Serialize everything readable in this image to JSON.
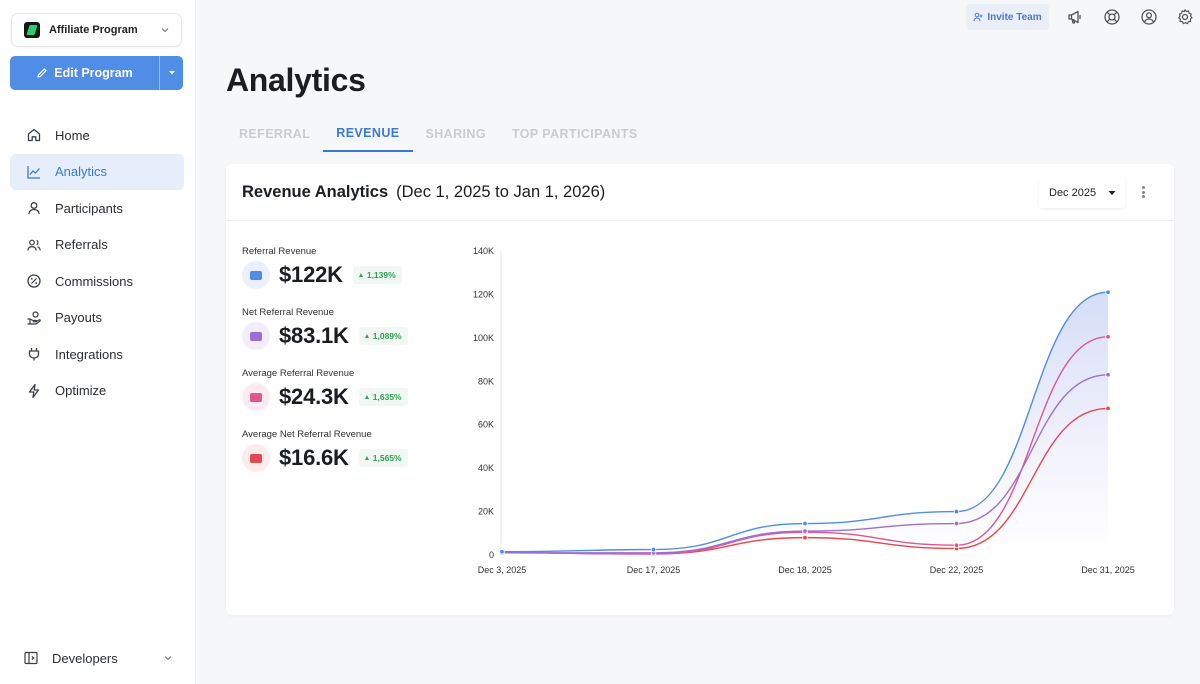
{
  "program": {
    "name": "Affiliate Program"
  },
  "edit_button": {
    "label": "Edit Program"
  },
  "nav": [
    {
      "label": "Home",
      "icon": "home-icon"
    },
    {
      "label": "Analytics",
      "icon": "analytics-icon",
      "active": true
    },
    {
      "label": "Participants",
      "icon": "user-icon"
    },
    {
      "label": "Referrals",
      "icon": "users-icon"
    },
    {
      "label": "Commissions",
      "icon": "percent-icon"
    },
    {
      "label": "Payouts",
      "icon": "hand-coin-icon"
    },
    {
      "label": "Integrations",
      "icon": "plug-icon"
    },
    {
      "label": "Optimize",
      "icon": "bolt-icon"
    }
  ],
  "developers": {
    "label": "Developers"
  },
  "topbar": {
    "invite_label": "Invite Team"
  },
  "page": {
    "title": "Analytics"
  },
  "tabs": [
    {
      "label": "REFERRAL",
      "active": false
    },
    {
      "label": "REVENUE",
      "active": true
    },
    {
      "label": "SHARING",
      "active": false
    },
    {
      "label": "TOP PARTICIPANTS",
      "active": false
    }
  ],
  "card": {
    "title": "Revenue Analytics",
    "range": "(Dec 1, 2025 to Jan 1, 2026)",
    "month": "Dec 2025"
  },
  "metrics": [
    {
      "label": "Referral Revenue",
      "value": "$122K",
      "change": "1,139%",
      "color": "#4f8de6",
      "bg": "#eaf1fc"
    },
    {
      "label": "Net Referral Revenue",
      "value": "$83.1K",
      "change": "1,089%",
      "color": "#9b6fd6",
      "bg": "#f3edfb"
    },
    {
      "label": "Average Referral Revenue",
      "value": "$24.3K",
      "change": "1,635%",
      "color": "#e0568f",
      "bg": "#fcebf2"
    },
    {
      "label": "Average Net Referral Revenue",
      "value": "$16.6K",
      "change": "1,565%",
      "color": "#e5484d",
      "bg": "#fdecec"
    }
  ],
  "chart_data": {
    "type": "line",
    "categories": [
      "Dec 3, 2025",
      "Dec 17, 2025",
      "Dec 18, 2025",
      "Dec 22, 2025",
      "Dec 31, 2025"
    ],
    "ylim": [
      0,
      140000
    ],
    "yticks": [
      "0",
      "20K",
      "40K",
      "60K",
      "80K",
      "100K",
      "120K",
      "140K"
    ],
    "grid": false,
    "series": [
      {
        "values": [
          1500,
          2500,
          14500,
          20000,
          121000
        ],
        "color": "#4f8de6",
        "fill": true
      },
      {
        "values": [
          1000,
          1000,
          11000,
          14500,
          83000
        ],
        "color": "#9b6fd6"
      },
      {
        "values": [
          1000,
          500,
          10500,
          4500,
          100500
        ],
        "color": "#e0568f"
      },
      {
        "values": [
          1000,
          500,
          8000,
          3000,
          67500
        ],
        "color": "#e5484d"
      }
    ]
  }
}
